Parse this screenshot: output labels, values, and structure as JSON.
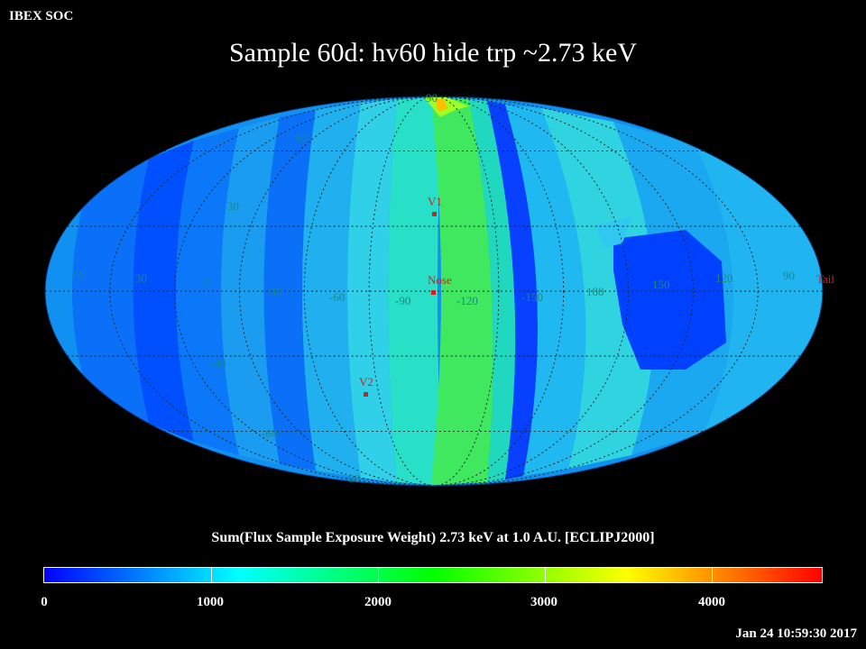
{
  "header": {
    "org": "IBEX SOC",
    "title": "Sample 60d: hv60 hide trp ~2.73 keV"
  },
  "map": {
    "projection": "mollweide",
    "frame": "ECLIPJ2000",
    "lon_labels": [
      "60",
      "30",
      "0",
      "-30",
      "-60",
      "-90",
      "-120",
      "-150",
      "180",
      "150",
      "120",
      "90"
    ],
    "lat_labels": [
      "90",
      "60",
      "30",
      "-30",
      "-60",
      "-90"
    ],
    "markers": [
      {
        "label": "V1",
        "color": "#d02020"
      },
      {
        "label": "Nose",
        "color": "#d02020"
      },
      {
        "label": "V2",
        "color": "#d02020"
      },
      {
        "label": "Tail",
        "color": "#d02020"
      }
    ]
  },
  "colorbar": {
    "title": "Sum(Flux Sample Exposure Weight)  2.73 keV at 1.0 A.U. [ECLIPJ2000]",
    "ticks": [
      "0",
      "1000",
      "2000",
      "3000",
      "4000"
    ],
    "range": [
      0,
      4700
    ],
    "colors": [
      "#0000ff",
      "#00ffff",
      "#00ff00",
      "#ffff00",
      "#ff0000"
    ]
  },
  "footer": {
    "timestamp": "Jan 24 10:59:30 2017"
  }
}
